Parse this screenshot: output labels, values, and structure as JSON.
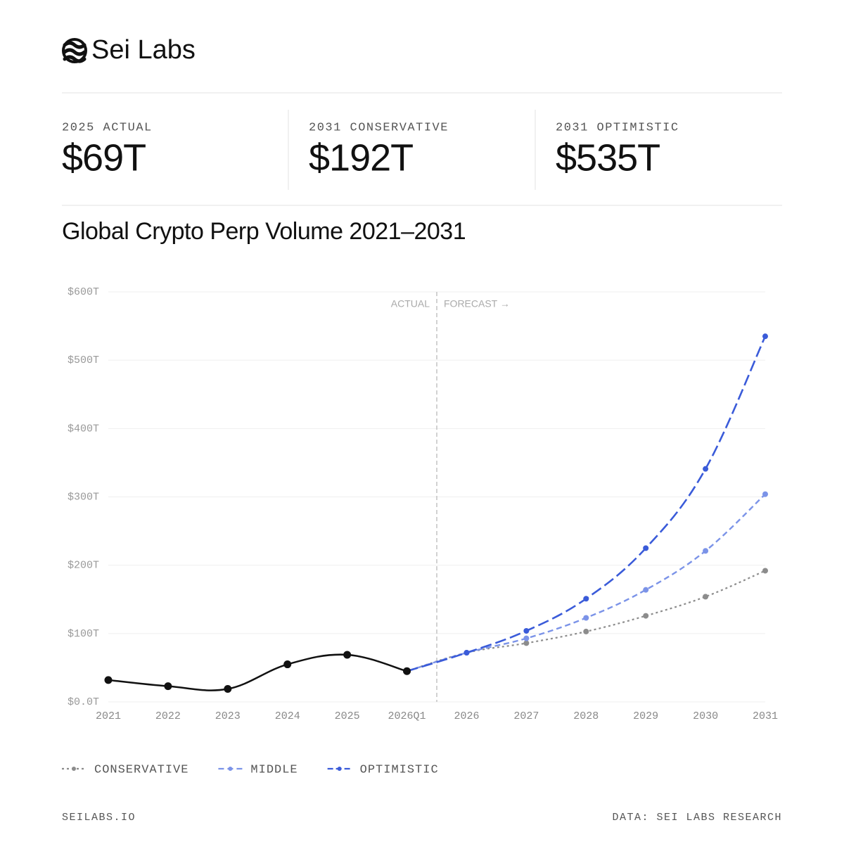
{
  "header": {
    "brand": "Sei Labs"
  },
  "stats": [
    {
      "label": "2025 ACTUAL",
      "value": "$69T"
    },
    {
      "label": "2031 CONSERVATIVE",
      "value": "$192T"
    },
    {
      "label": "2031 OPTIMISTIC",
      "value": "$535T"
    }
  ],
  "chart_data": {
    "type": "line",
    "title": "Global Crypto Perp Volume 2021–2031",
    "categories": [
      "2021",
      "2022",
      "2023",
      "2024",
      "2025",
      "2026Q1",
      "2026",
      "2027",
      "2028",
      "2029",
      "2030",
      "2031"
    ],
    "series": [
      {
        "color": "#111111",
        "values": [
          32,
          23,
          19,
          55,
          69,
          45,
          null,
          null,
          null,
          null,
          null,
          null
        ]
      },
      {
        "name": "CONSERVATIVE",
        "color": "#8c8c8c",
        "values": [
          null,
          null,
          null,
          null,
          null,
          45,
          72,
          86,
          103,
          126,
          154,
          192
        ]
      },
      {
        "name": "MIDDLE",
        "color": "#7b93e8",
        "values": [
          null,
          null,
          null,
          null,
          null,
          45,
          72,
          93,
          123,
          164,
          221,
          304
        ]
      },
      {
        "name": "OPTIMISTIC",
        "color": "#3a5bd9",
        "values": [
          null,
          null,
          null,
          null,
          null,
          45,
          72,
          104,
          151,
          225,
          341,
          535
        ]
      }
    ],
    "ylim": [
      0,
      600
    ],
    "yticks": [
      {
        "value": 0,
        "label": "$0.0T"
      },
      {
        "value": 100,
        "label": "$100T"
      },
      {
        "value": 200,
        "label": "$200T"
      },
      {
        "value": 300,
        "label": "$300T"
      },
      {
        "value": 400,
        "label": "$400T"
      },
      {
        "value": 500,
        "label": "$500T"
      },
      {
        "value": 600,
        "label": "$600T"
      }
    ],
    "grid": true,
    "annotations": [
      "ACTUAL",
      "FORECAST →"
    ]
  },
  "footer": {
    "left": "SEILABS.IO",
    "right": "DATA: SEI LABS RESEARCH"
  }
}
